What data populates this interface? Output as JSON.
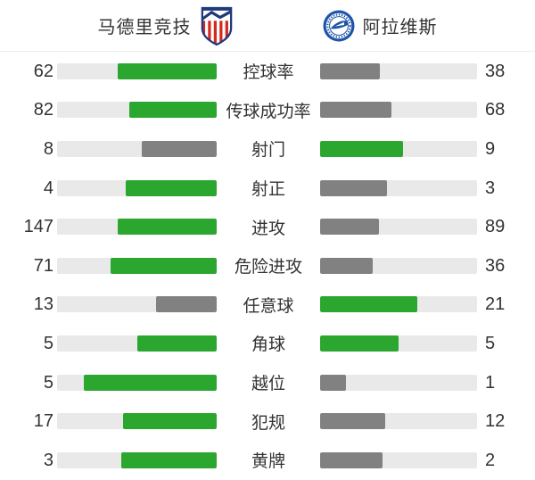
{
  "header": {
    "home": {
      "name": "马德里竞技",
      "logo": "atletico-madrid-crest"
    },
    "away": {
      "name": "阿拉维斯",
      "logo": "alaves-crest"
    }
  },
  "colors": {
    "leading_fill": "#2ba62f",
    "trailing_fill": "#818181",
    "track": "#e9e9e9",
    "text": "#333333",
    "atletico_red": "#d5281e",
    "atletico_navy": "#1f3a7d",
    "alaves_blue": "#1e55a8"
  },
  "stats": [
    {
      "label": "控球率",
      "home": 62,
      "away": 38
    },
    {
      "label": "传球成功率",
      "home": 82,
      "away": 68
    },
    {
      "label": "射门",
      "home": 8,
      "away": 9
    },
    {
      "label": "射正",
      "home": 4,
      "away": 3
    },
    {
      "label": "进攻",
      "home": 147,
      "away": 89
    },
    {
      "label": "危险进攻",
      "home": 71,
      "away": 36
    },
    {
      "label": "任意球",
      "home": 13,
      "away": 21
    },
    {
      "label": "角球",
      "home": 5,
      "away": 5
    },
    {
      "label": "越位",
      "home": 5,
      "away": 1
    },
    {
      "label": "犯规",
      "home": 17,
      "away": 12
    },
    {
      "label": "黄牌",
      "home": 3,
      "away": 2
    }
  ],
  "chart_data": {
    "type": "bar",
    "orientation": "horizontal-paired",
    "categories": [
      "控球率",
      "传球成功率",
      "射门",
      "射正",
      "进攻",
      "危险进攻",
      "任意球",
      "角球",
      "越位",
      "犯规",
      "黄牌"
    ],
    "series": [
      {
        "name": "马德里竞技",
        "values": [
          62,
          82,
          8,
          4,
          147,
          71,
          13,
          5,
          5,
          17,
          3
        ]
      },
      {
        "name": "阿拉维斯",
        "values": [
          38,
          68,
          9,
          3,
          89,
          36,
          21,
          5,
          1,
          12,
          2
        ]
      }
    ],
    "legend_position": "top",
    "value_labels": "outer-ends",
    "bar_fill_rule": "value / (home + away) of track width, leading side green, trailing side gray, ties green"
  }
}
